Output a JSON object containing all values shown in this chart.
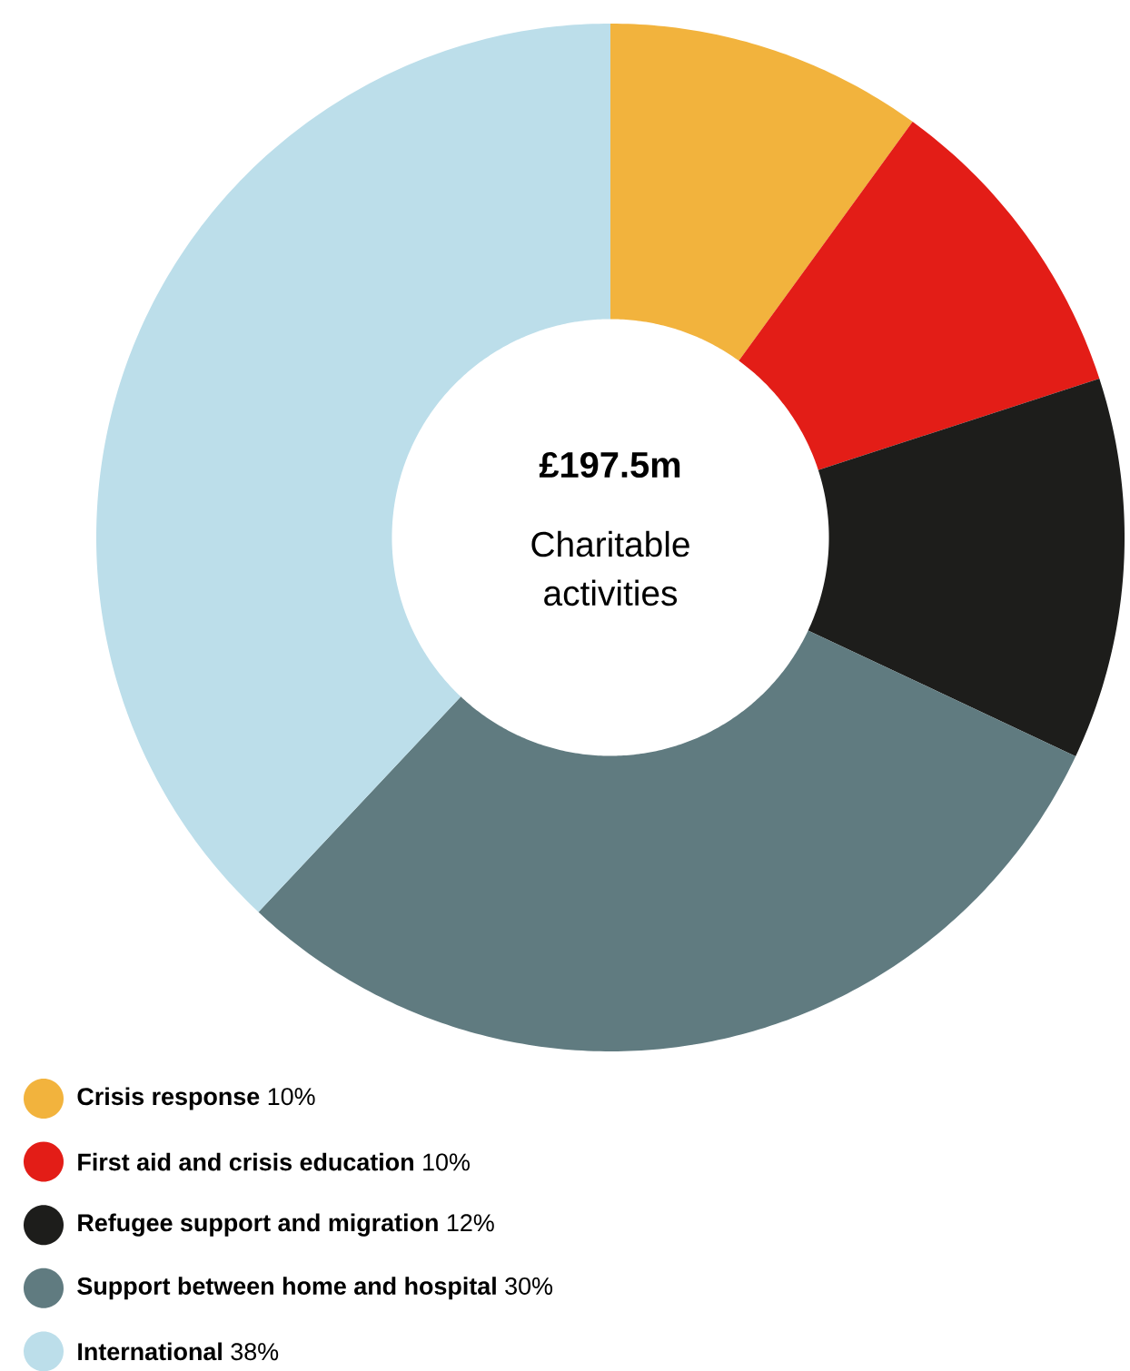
{
  "chart_data": {
    "type": "donut",
    "title": "£197.5m",
    "subtitle": "Charitable activities",
    "categories": [
      "Crisis response",
      "First aid and crisis education",
      "Refugee support and migration",
      "Support between home and hospital",
      "International"
    ],
    "values": [
      10,
      10,
      12,
      30,
      38
    ],
    "value_labels": [
      "10%",
      "10%",
      "12%",
      "30%",
      "38%"
    ],
    "colors": [
      "#f2b33d",
      "#e31d17",
      "#1d1d1b",
      "#607b80",
      "#bcdeea"
    ],
    "legend": "bottom"
  }
}
